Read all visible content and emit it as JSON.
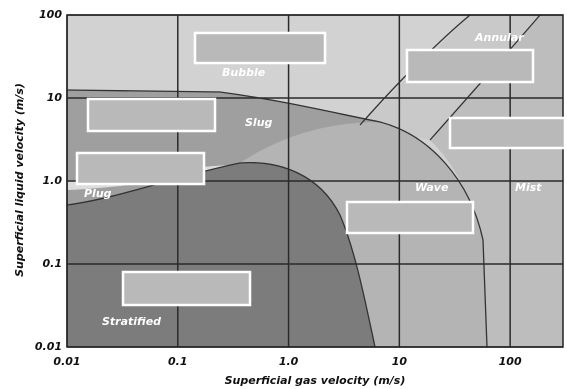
{
  "chart_data": {
    "type": "regime-map",
    "xlabel": "Superficial gas velocity (m/s)",
    "ylabel": "Superficial liquid velocity (m/s)",
    "xscale": "log",
    "yscale": "log",
    "xlim": [
      0.01,
      300
    ],
    "ylim": [
      0.01,
      100
    ],
    "xticks": [
      0.01,
      0.1,
      {
        "value": 1,
        "label": "1.0"
      },
      10,
      100
    ],
    "yticks": [
      0.01,
      0.1,
      {
        "value": 1,
        "label": "1.0"
      },
      10,
      100
    ],
    "grid": true,
    "annotations": [
      "Annular",
      "Bubble",
      "Slug",
      "Plug",
      "Wave",
      "Mist",
      "Stratified"
    ]
  }
}
